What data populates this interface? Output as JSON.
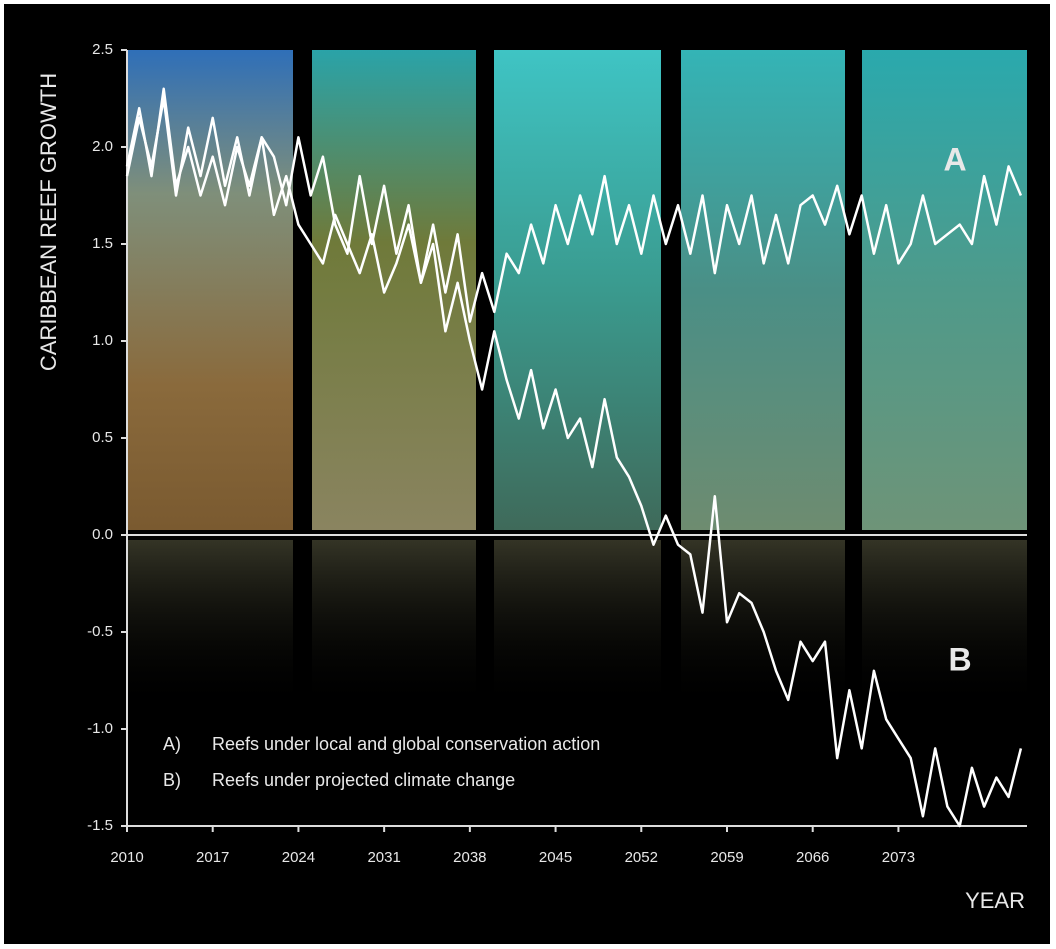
{
  "chart_data": {
    "type": "line",
    "y_label": "CARIBBEAN REEF GROWTH",
    "x_label": "YEAR",
    "x": [
      2010,
      2011,
      2012,
      2013,
      2014,
      2015,
      2016,
      2017,
      2018,
      2019,
      2020,
      2021,
      2022,
      2023,
      2024,
      2025,
      2026,
      2027,
      2028,
      2029,
      2030,
      2031,
      2032,
      2033,
      2034,
      2035,
      2036,
      2037,
      2038,
      2039,
      2040,
      2041,
      2042,
      2043,
      2044,
      2045,
      2046,
      2047,
      2048,
      2049,
      2050,
      2051,
      2052,
      2053,
      2054,
      2055,
      2056,
      2057,
      2058,
      2059,
      2060,
      2061,
      2062,
      2063,
      2064,
      2065,
      2066,
      2067,
      2068,
      2069,
      2070,
      2071,
      2072,
      2073,
      2074,
      2075,
      2076,
      2077,
      2078,
      2079,
      2080,
      2081,
      2082,
      2083
    ],
    "series": [
      {
        "name": "Reefs under local and global conservation action",
        "key": "A)",
        "label": "A",
        "color": "#ffffff",
        "values": [
          1.85,
          2.15,
          1.9,
          2.25,
          1.75,
          2.1,
          1.85,
          2.15,
          1.8,
          2.05,
          1.75,
          2.05,
          1.95,
          1.7,
          2.05,
          1.75,
          1.95,
          1.6,
          1.45,
          1.85,
          1.5,
          1.8,
          1.45,
          1.7,
          1.3,
          1.6,
          1.25,
          1.55,
          1.1,
          1.35,
          1.15,
          1.45,
          1.35,
          1.6,
          1.4,
          1.7,
          1.5,
          1.75,
          1.55,
          1.85,
          1.5,
          1.7,
          1.45,
          1.75,
          1.5,
          1.7,
          1.45,
          1.75,
          1.35,
          1.7,
          1.5,
          1.75,
          1.4,
          1.65,
          1.4,
          1.7,
          1.75,
          1.6,
          1.8,
          1.55,
          1.75,
          1.45,
          1.7,
          1.4,
          1.5,
          1.75,
          1.5,
          1.55,
          1.6,
          1.5,
          1.85,
          1.6,
          1.9,
          1.75
        ]
      },
      {
        "name": "Reefs under projected climate change",
        "key": "B)",
        "label": "B",
        "color": "#ffffff",
        "values": [
          1.9,
          2.2,
          1.85,
          2.3,
          1.8,
          2.0,
          1.75,
          1.95,
          1.7,
          2.0,
          1.8,
          2.05,
          1.65,
          1.85,
          1.6,
          1.5,
          1.4,
          1.65,
          1.5,
          1.35,
          1.55,
          1.25,
          1.4,
          1.6,
          1.3,
          1.5,
          1.05,
          1.3,
          1.0,
          0.75,
          1.05,
          0.8,
          0.6,
          0.85,
          0.55,
          0.75,
          0.5,
          0.6,
          0.35,
          0.7,
          0.4,
          0.3,
          0.15,
          -0.05,
          0.1,
          -0.05,
          -0.1,
          -0.4,
          0.2,
          -0.45,
          -0.3,
          -0.35,
          -0.5,
          -0.7,
          -0.85,
          -0.55,
          -0.65,
          -0.55,
          -1.15,
          -0.8,
          -1.1,
          -0.7,
          -0.95,
          -1.05,
          -1.15,
          -1.45,
          -1.1,
          -1.4,
          -1.5,
          -1.2,
          -1.4,
          -1.25,
          -1.35,
          -1.1
        ]
      }
    ],
    "xlim": [
      2010,
      2083.5
    ],
    "xticks": [
      2010,
      2017,
      2024,
      2031,
      2038,
      2045,
      2052,
      2059,
      2066,
      2073
    ],
    "ylim": [
      -1.5,
      2.5
    ],
    "yticks": [
      -1.5,
      {
        "value": -1,
        "label": "-1.0"
      },
      -0.5,
      {
        "value": 0,
        "label": "0.0"
      },
      0.5,
      {
        "value": 1,
        "label": "1.0"
      },
      1.5,
      {
        "value": 2,
        "label": "2.0"
      },
      2.5
    ]
  }
}
